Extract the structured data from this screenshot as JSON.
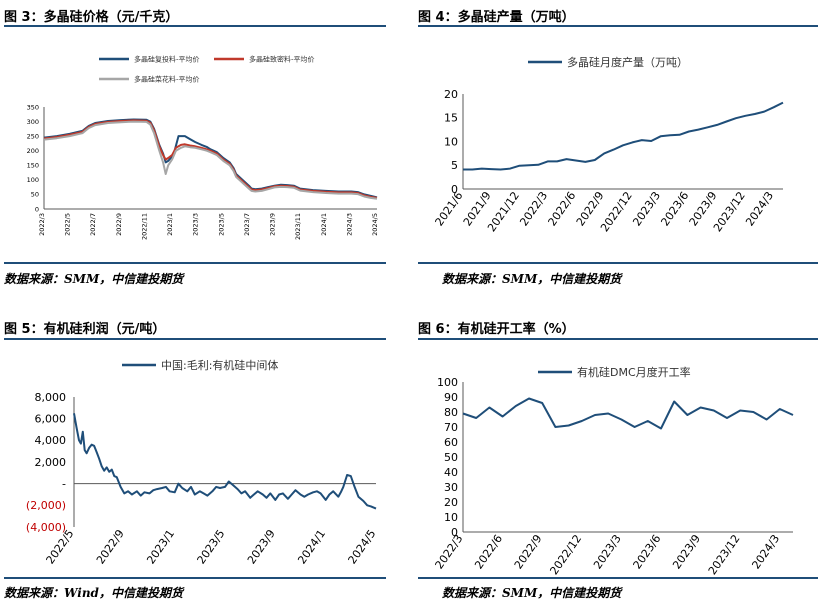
{
  "panels": [
    {
      "title": "图 3：多晶硅价格（元/千克）",
      "source": "数据来源：SMM，中信建投期货"
    },
    {
      "title": "图 4：多晶硅产量（万吨）",
      "source": "数据来源：SMM，中信建投期货"
    },
    {
      "title": "图 5：有机硅利润（元/吨）",
      "source": "数据来源：Wind，中信建投期货"
    },
    {
      "title": "图 6：有机硅开工率（%）",
      "source": "数据来源：SMM，中信建投期货"
    }
  ],
  "chart_data": [
    {
      "type": "line",
      "ylim": [
        0,
        350
      ],
      "yticks": [
        0,
        50,
        100,
        150,
        200,
        250,
        300,
        350
      ],
      "xlim": [
        0,
        26
      ],
      "xticks": [
        {
          "label": "2022/3",
          "x": 0
        },
        {
          "label": "2022/5",
          "x": 2
        },
        {
          "label": "2022/7",
          "x": 4
        },
        {
          "label": "2022/9",
          "x": 6
        },
        {
          "label": "2022/11",
          "x": 8
        },
        {
          "label": "2023/1",
          "x": 10
        },
        {
          "label": "2023/3",
          "x": 12
        },
        {
          "label": "2023/5",
          "x": 14
        },
        {
          "label": "2023/7",
          "x": 16
        },
        {
          "label": "2023/9",
          "x": 18
        },
        {
          "label": "2023/11",
          "x": 20
        },
        {
          "label": "2024/1",
          "x": 22
        },
        {
          "label": "2024/3",
          "x": 24
        },
        {
          "label": "2024/5",
          "x": 26
        }
      ],
      "legend_position": "top",
      "series": [
        {
          "name": "多晶硅复投料-平均价",
          "color": "#1f4e79",
          "x": [
            0,
            1,
            2,
            3,
            3.5,
            4,
            5,
            6,
            7,
            8,
            8.3,
            8.6,
            9,
            9.3,
            9.5,
            9.7,
            10,
            10.2,
            10.5,
            10.8,
            11,
            11.4,
            11.8,
            12.3,
            12.7,
            13,
            13.5,
            14,
            14.5,
            14.8,
            15,
            15.5,
            16,
            16.2,
            16.5,
            17,
            17.5,
            18,
            18.5,
            19,
            19.5,
            20,
            21,
            22,
            23,
            24,
            24.5,
            25,
            25.5,
            26
          ],
          "y": [
            245,
            250,
            258,
            268,
            285,
            295,
            302,
            305,
            307,
            306,
            300,
            275,
            220,
            190,
            160,
            165,
            180,
            200,
            250,
            250,
            250,
            240,
            230,
            220,
            213,
            205,
            195,
            175,
            160,
            140,
            120,
            100,
            80,
            70,
            68,
            70,
            75,
            80,
            83,
            82,
            80,
            70,
            65,
            62,
            60,
            60,
            58,
            50,
            45,
            40
          ]
        },
        {
          "name": "多晶硅致密料-平均价",
          "color": "#c0392b",
          "x": [
            0,
            1,
            2,
            3,
            3.5,
            4,
            5,
            6,
            7,
            8,
            8.3,
            8.6,
            9,
            9.3,
            9.5,
            9.7,
            10,
            10.3,
            10.7,
            11,
            11.4,
            11.8,
            12.3,
            12.7,
            13,
            13.5,
            14,
            14.5,
            14.8,
            15,
            15.5,
            16,
            16.2,
            16.5,
            17,
            17.5,
            18,
            18.5,
            19,
            19.5,
            20,
            21,
            22,
            23,
            24,
            24.5,
            25,
            25.5,
            26
          ],
          "y": [
            242,
            247,
            255,
            265,
            282,
            292,
            299,
            302,
            304,
            303,
            296,
            270,
            215,
            185,
            170,
            175,
            185,
            210,
            220,
            222,
            218,
            215,
            210,
            205,
            200,
            190,
            170,
            155,
            135,
            115,
            95,
            75,
            67,
            65,
            67,
            72,
            78,
            80,
            79,
            77,
            67,
            62,
            59,
            57,
            57,
            55,
            47,
            42,
            38
          ]
        },
        {
          "name": "多晶硅菜花料-平均价",
          "color": "#a6a6a6",
          "x": [
            0,
            1,
            2,
            3,
            3.5,
            4,
            5,
            6,
            7,
            8,
            8.3,
            8.6,
            9,
            9.3,
            9.5,
            9.7,
            10,
            10.3,
            10.7,
            11,
            11.4,
            11.8,
            12.3,
            12.7,
            13,
            13.5,
            14,
            14.5,
            14.8,
            15,
            15.5,
            16,
            16.2,
            16.5,
            17,
            17.5,
            18,
            18.5,
            19,
            19.5,
            20,
            21,
            22,
            23,
            24,
            24.5,
            25,
            25.5,
            26
          ],
          "y": [
            238,
            243,
            250,
            260,
            278,
            288,
            295,
            298,
            300,
            299,
            290,
            260,
            200,
            160,
            120,
            150,
            170,
            200,
            210,
            215,
            212,
            210,
            205,
            200,
            195,
            185,
            165,
            150,
            130,
            110,
            90,
            70,
            62,
            60,
            62,
            68,
            74,
            76,
            75,
            73,
            63,
            58,
            55,
            53,
            53,
            51,
            43,
            38,
            35
          ]
        }
      ]
    },
    {
      "type": "line",
      "ylim": [
        0,
        20
      ],
      "yticks": [
        0,
        5,
        10,
        15,
        20
      ],
      "xlim": [
        0,
        34
      ],
      "xticks": [
        {
          "label": "2021/6",
          "x": 0
        },
        {
          "label": "2021/9",
          "x": 3
        },
        {
          "label": "2021/12",
          "x": 6
        },
        {
          "label": "2022/3",
          "x": 9
        },
        {
          "label": "2022/6",
          "x": 12
        },
        {
          "label": "2022/9",
          "x": 15
        },
        {
          "label": "2022/12",
          "x": 18
        },
        {
          "label": "2023/3",
          "x": 21
        },
        {
          "label": "2023/6",
          "x": 24
        },
        {
          "label": "2023/9",
          "x": 27
        },
        {
          "label": "2023/12",
          "x": 30
        },
        {
          "label": "2024/3",
          "x": 33
        }
      ],
      "legend_position": "top",
      "series": [
        {
          "name": "多晶硅月度产量（万吨）",
          "color": "#1f4e79",
          "x": [
            0,
            1,
            2,
            3,
            4,
            5,
            6,
            7,
            8,
            9,
            10,
            11,
            12,
            13,
            14,
            15,
            16,
            17,
            18,
            19,
            20,
            21,
            22,
            23,
            24,
            25,
            26,
            27,
            28,
            29,
            30,
            31,
            32,
            33,
            34
          ],
          "y": [
            4.1,
            4.1,
            4.3,
            4.2,
            4.1,
            4.3,
            4.9,
            5.0,
            5.1,
            5.8,
            5.8,
            6.3,
            6.0,
            5.7,
            6.1,
            7.5,
            8.3,
            9.2,
            9.8,
            10.3,
            10.1,
            11.1,
            11.3,
            11.4,
            12.1,
            12.5,
            13.0,
            13.5,
            14.2,
            14.9,
            15.4,
            15.8,
            16.3,
            17.2,
            18.2
          ]
        }
      ]
    },
    {
      "type": "line",
      "ylim": [
        -4000,
        8000
      ],
      "yticks": [
        -4000,
        -2000,
        0,
        2000,
        4000,
        6000,
        8000
      ],
      "ytick_labels": [
        "(4,000)",
        "(2,000)",
        "-",
        "2,000",
        "4,000",
        "6,000",
        "8,000"
      ],
      "negative_label_color": "#c00000",
      "xlim": [
        0,
        24
      ],
      "xticks": [
        {
          "label": "2022/5",
          "x": 0
        },
        {
          "label": "2022/9",
          "x": 4
        },
        {
          "label": "2023/1",
          "x": 8
        },
        {
          "label": "2023/5",
          "x": 12
        },
        {
          "label": "2023/9",
          "x": 16
        },
        {
          "label": "2024/1",
          "x": 20
        },
        {
          "label": "2024/5",
          "x": 24
        }
      ],
      "legend_position": "top",
      "series": [
        {
          "name": "中国:毛利:有机硅中间体",
          "color": "#1f4e79",
          "x": [
            0,
            0.2,
            0.4,
            0.55,
            0.7,
            0.85,
            1.0,
            1.2,
            1.4,
            1.6,
            1.8,
            2.0,
            2.2,
            2.4,
            2.6,
            2.8,
            3.0,
            3.2,
            3.4,
            3.7,
            4.0,
            4.3,
            4.6,
            5.0,
            5.3,
            5.6,
            6.0,
            6.3,
            6.6,
            7.0,
            7.3,
            7.6,
            8.0,
            8.3,
            8.6,
            9.0,
            9.3,
            9.6,
            10.0,
            10.3,
            10.6,
            11.0,
            11.3,
            11.6,
            12.0,
            12.3,
            12.6,
            13.0,
            13.3,
            13.6,
            14.0,
            14.3,
            14.6,
            15.0,
            15.3,
            15.6,
            16.0,
            16.3,
            16.6,
            17.0,
            17.3,
            17.6,
            18.0,
            18.3,
            18.6,
            19.0,
            19.3,
            19.6,
            20.0,
            20.3,
            20.6,
            21.0,
            21.2,
            21.4,
            21.7,
            22.0,
            22.3,
            22.6,
            23.0,
            23.3,
            23.6,
            24.0
          ],
          "y": [
            6500,
            5200,
            4000,
            3700,
            4800,
            3100,
            2800,
            3300,
            3600,
            3500,
            2900,
            2300,
            1600,
            1200,
            1500,
            1100,
            1300,
            700,
            600,
            -300,
            -900,
            -700,
            -1000,
            -700,
            -1100,
            -800,
            -900,
            -600,
            -500,
            -400,
            -300,
            -700,
            -800,
            0,
            -400,
            -700,
            -300,
            -1000,
            -700,
            -900,
            -1100,
            -700,
            -300,
            -400,
            -300,
            200,
            -100,
            -500,
            -900,
            -700,
            -1300,
            -1000,
            -700,
            -1000,
            -1300,
            -900,
            -1500,
            -1000,
            -900,
            -1400,
            -1000,
            -600,
            -1000,
            -1200,
            -1000,
            -800,
            -700,
            -900,
            -1500,
            -1000,
            -700,
            -1200,
            -800,
            -300,
            800,
            700,
            -300,
            -1200,
            -1600,
            -2000,
            -2100,
            -2300
          ]
        }
      ]
    },
    {
      "type": "line",
      "ylim": [
        0,
        100
      ],
      "yticks": [
        0,
        10,
        20,
        30,
        40,
        50,
        60,
        70,
        80,
        90,
        100
      ],
      "xlim": [
        0,
        25
      ],
      "xticks": [
        {
          "label": "2022/3",
          "x": 0
        },
        {
          "label": "2022/6",
          "x": 3
        },
        {
          "label": "2022/9",
          "x": 6
        },
        {
          "label": "2022/12",
          "x": 9
        },
        {
          "label": "2023/3",
          "x": 12
        },
        {
          "label": "2023/6",
          "x": 15
        },
        {
          "label": "2023/9",
          "x": 18
        },
        {
          "label": "2023/12",
          "x": 21
        },
        {
          "label": "2024/3",
          "x": 24
        }
      ],
      "legend_position": "top",
      "series": [
        {
          "name": "有机硅DMC月度开工率",
          "color": "#1f4e79",
          "x": [
            0,
            1,
            2,
            3,
            4,
            5,
            6,
            7,
            8,
            9,
            10,
            11,
            12,
            13,
            14,
            15,
            16,
            17,
            18,
            19,
            20,
            21,
            22,
            23,
            24,
            25
          ],
          "y": [
            79,
            76,
            83,
            77,
            84,
            89,
            86,
            70,
            71,
            74,
            78,
            79,
            75,
            70,
            74,
            69,
            87,
            78,
            83,
            81,
            76,
            81,
            80,
            75,
            82,
            78
          ]
        }
      ]
    }
  ]
}
